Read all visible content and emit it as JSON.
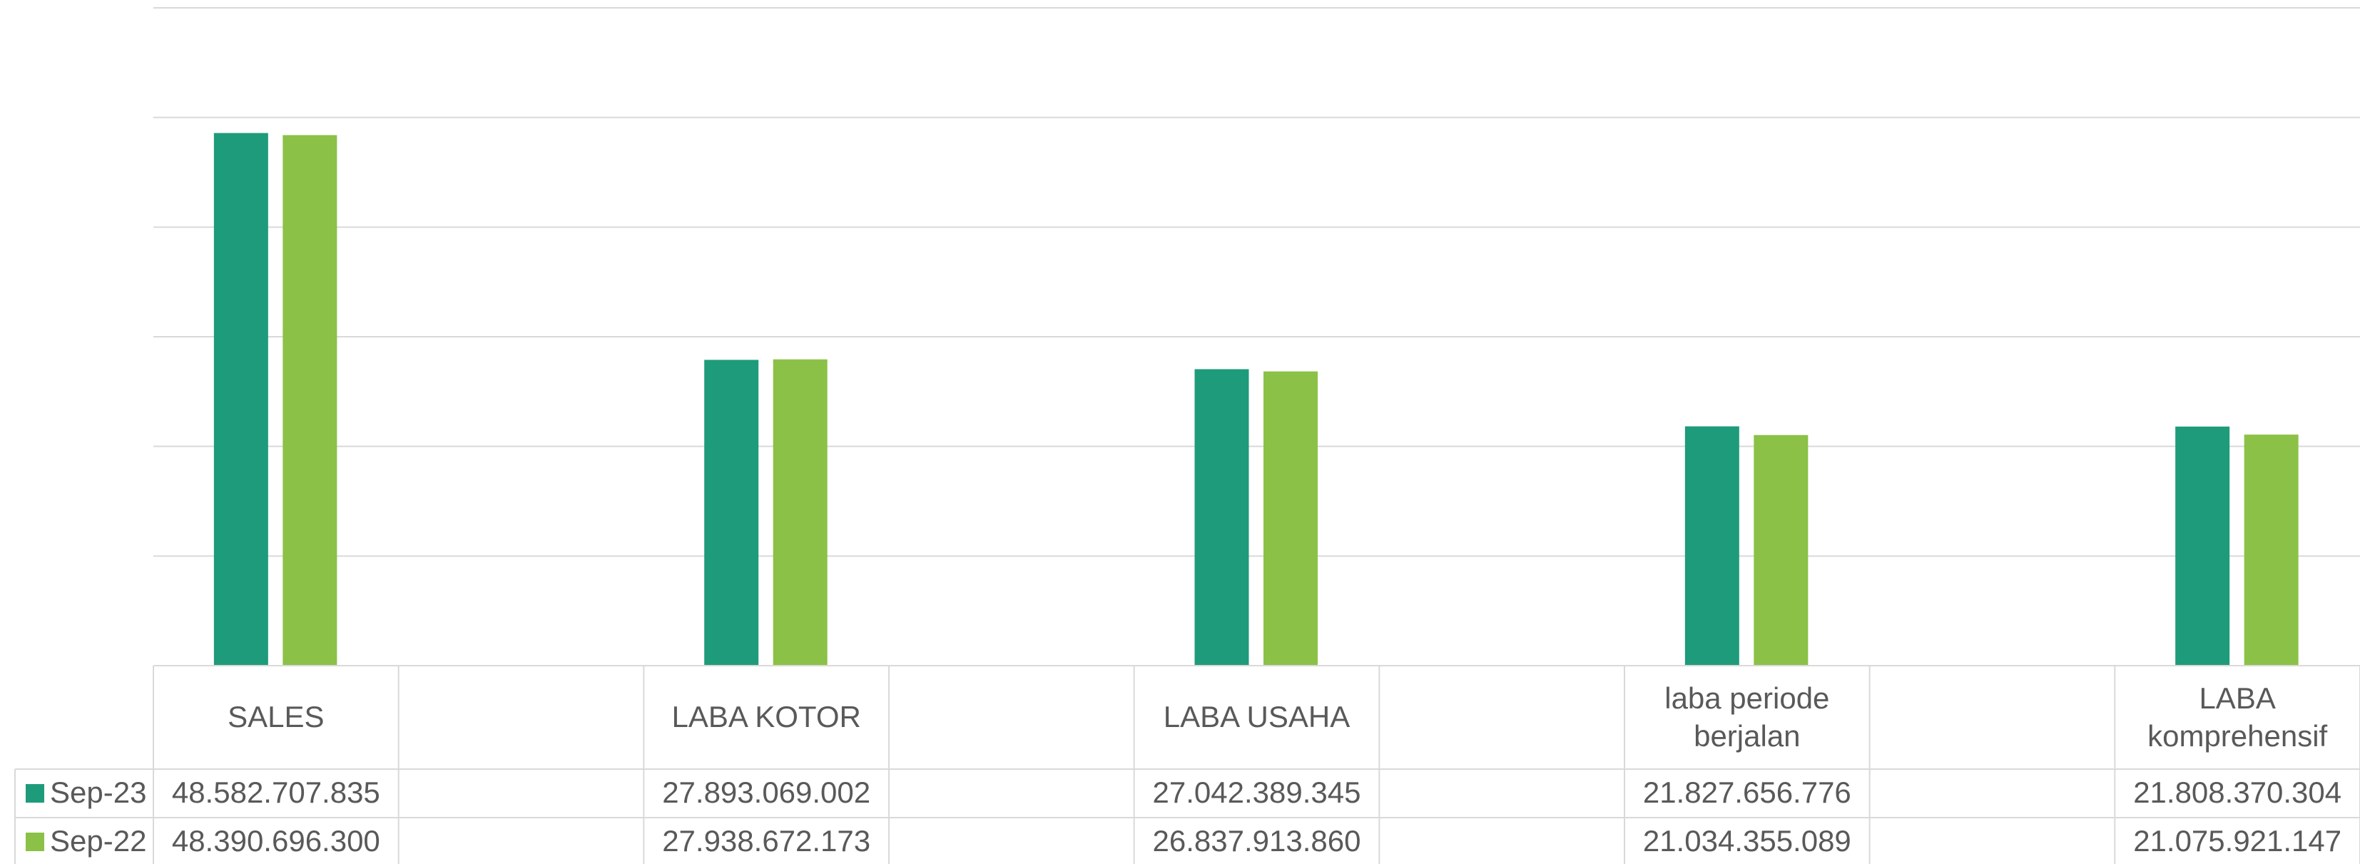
{
  "chart_data": {
    "type": "bar",
    "categories": [
      "SALES",
      null,
      "LABA KOTOR",
      null,
      "LABA USAHA",
      null,
      "laba periode berjalan",
      null,
      "LABA komprehensif"
    ],
    "series": [
      {
        "name": "Sep-23",
        "color": "#1e9b7a",
        "values": [
          48582707835,
          null,
          27893069002,
          null,
          27042389345,
          null,
          21827656776,
          null,
          21808370304
        ],
        "value_labels": [
          "48.582.707.835",
          null,
          "27.893.069.002",
          null,
          "27.042.389.345",
          null,
          "21.827.656.776",
          null,
          "21.808.370.304"
        ]
      },
      {
        "name": "Sep-22",
        "color": "#8bc146",
        "values": [
          48390696300,
          null,
          27938672173,
          null,
          26837913860,
          null,
          21034355089,
          null,
          21075921147
        ],
        "value_labels": [
          "48.390.696.300",
          null,
          "27.938.672.173",
          null,
          "26.837.913.860",
          null,
          "21.034.355.089",
          null,
          "21.075.921.147"
        ]
      }
    ],
    "ylim": [
      0,
      60000000000
    ],
    "yticks": [
      0,
      10000000000,
      20000000000,
      30000000000,
      40000000000,
      50000000000,
      60000000000
    ],
    "grid": true,
    "data_table": true
  }
}
